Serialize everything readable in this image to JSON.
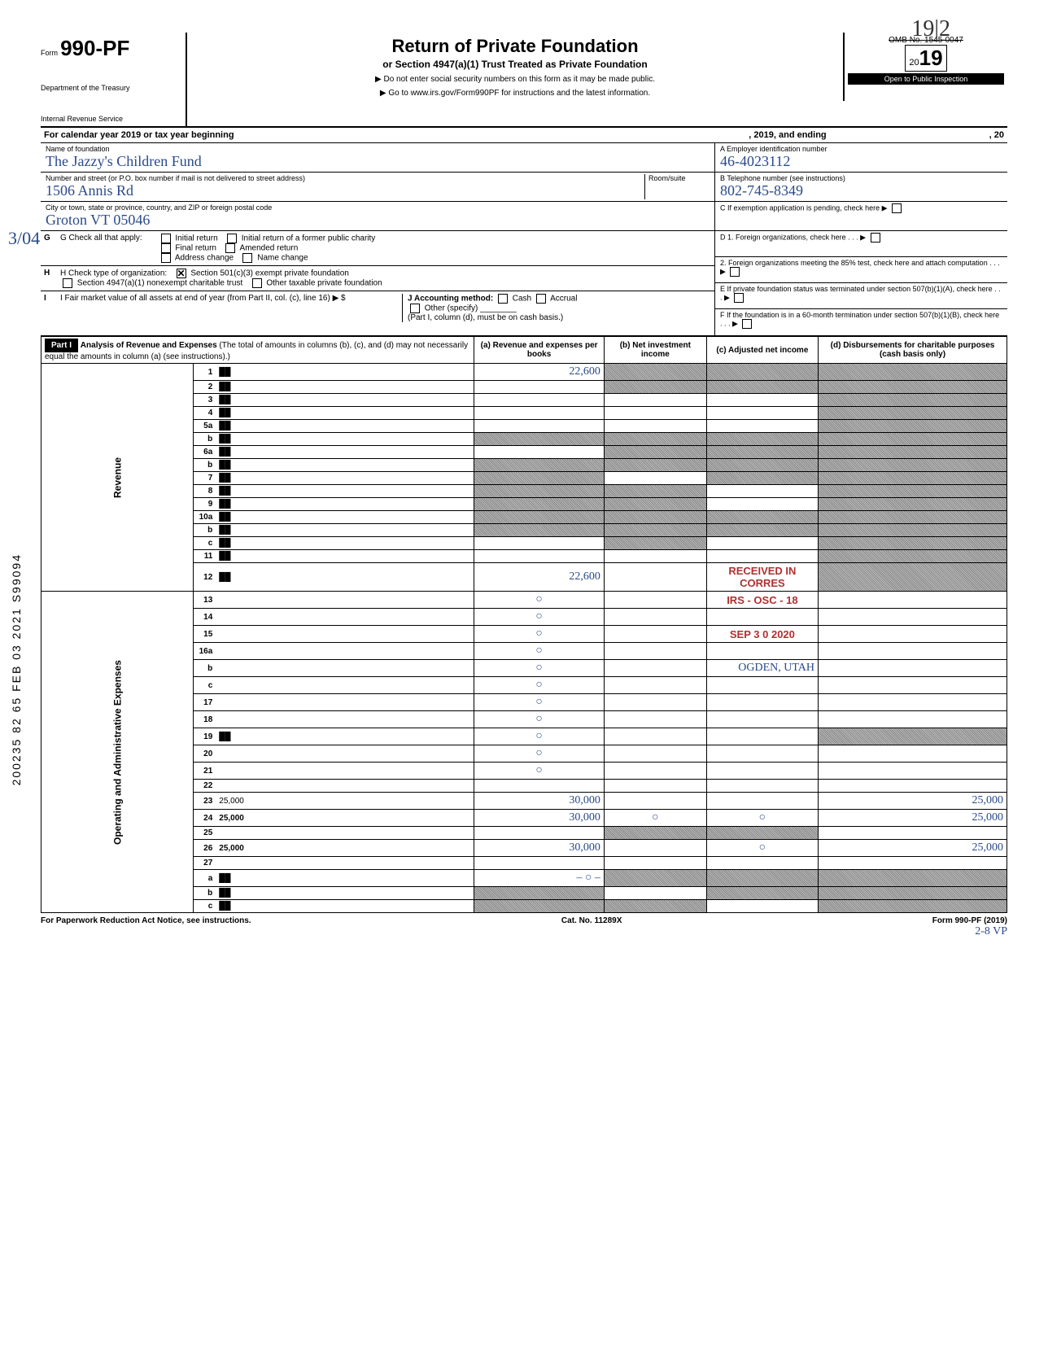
{
  "top_handwritten": "19|2",
  "form": {
    "form_label": "Form",
    "form_number": "990-PF",
    "dept_line1": "Department of the Treasury",
    "dept_line2": "Internal Revenue Service",
    "title_main": "Return of Private Foundation",
    "title_sub": "or Section 4947(a)(1) Trust Treated as Private Foundation",
    "title_note1": "▶ Do not enter social security numbers on this form as it may be made public.",
    "title_note2": "▶ Go to www.irs.gov/Form990PF for instructions and the latest information.",
    "omb": "OMB No. 1545-0047",
    "year_prefix": "20",
    "year": "19",
    "public_insp": "Open to Public Inspection"
  },
  "calendar_row": {
    "text_a": "For calendar year 2019 or tax year beginning",
    "text_b": ", 2019, and ending",
    "text_c": ", 20"
  },
  "identity": {
    "name_label": "Name of foundation",
    "name_value": "The Jazzy's Children Fund",
    "addr_label": "Number and street (or P.O. box number if mail is not delivered to street address)",
    "addr_value": "1506 Annis Rd",
    "room_label": "Room/suite",
    "city_label": "City or town, state or province, country, and ZIP or foreign postal code",
    "city_value": "Groton    VT    05046",
    "ein_label": "A  Employer identification number",
    "ein_value": "46-4023112",
    "phone_label": "B  Telephone number (see instructions)",
    "phone_value": "802-745-8349",
    "c_label": "C  If exemption application is pending, check here ▶",
    "d1_label": "D  1. Foreign organizations, check here . . . ▶",
    "d2_label": "2. Foreign organizations meeting the 85% test, check here and attach computation  . . . ▶",
    "e_label": "E  If private foundation status was terminated under section 507(b)(1)(A), check here  . . . ▶",
    "f_label": "F  If the foundation is in a 60-month termination under section 507(b)(1)(B), check here  . . . ▶"
  },
  "checks": {
    "g_label": "G  Check all that apply:",
    "g_items": [
      "Initial return",
      "Initial return of a former public charity",
      "Final return",
      "Amended return",
      "Address change",
      "Name change"
    ],
    "h_label": "H  Check type of organization:",
    "h_501c3": "Section 501(c)(3) exempt private foundation",
    "h_4947": "Section 4947(a)(1) nonexempt charitable trust",
    "h_other": "Other taxable private foundation",
    "i_label1": "I   Fair market value of all assets at end of year  (from Part II, col. (c), line 16) ▶  $",
    "j_label": "J  Accounting method:",
    "j_cash": "Cash",
    "j_accrual": "Accrual",
    "j_other": "Other (specify)",
    "j_note": "(Part I, column (d), must be on cash basis.)"
  },
  "part1": {
    "header": "Part I",
    "title": "Analysis of Revenue and Expenses",
    "title_note": "(The total of amounts in columns (b), (c), and (d) may not necessarily equal the amounts in column (a) (see instructions).)",
    "col_a": "(a) Revenue and expenses per books",
    "col_b": "(b) Net investment income",
    "col_c": "(c) Adjusted net income",
    "col_d": "(d) Disbursements for charitable purposes (cash basis only)"
  },
  "rows": [
    {
      "n": "1",
      "d": "██",
      "a": "22,600",
      "b": "██",
      "c": "██"
    },
    {
      "n": "2",
      "d": "██",
      "a": "",
      "b": "██",
      "c": "██"
    },
    {
      "n": "3",
      "d": "██",
      "a": "",
      "b": "",
      "c": ""
    },
    {
      "n": "4",
      "d": "██",
      "a": "",
      "b": "",
      "c": ""
    },
    {
      "n": "5a",
      "d": "██",
      "a": "",
      "b": "",
      "c": ""
    },
    {
      "n": "b",
      "d": "██",
      "a": "██",
      "b": "██",
      "c": "██"
    },
    {
      "n": "6a",
      "d": "██",
      "a": "",
      "b": "██",
      "c": "██"
    },
    {
      "n": "b",
      "d": "██",
      "a": "██",
      "b": "██",
      "c": "██"
    },
    {
      "n": "7",
      "d": "██",
      "a": "██",
      "b": "",
      "c": "██"
    },
    {
      "n": "8",
      "d": "██",
      "a": "██",
      "b": "██",
      "c": ""
    },
    {
      "n": "9",
      "d": "██",
      "a": "██",
      "b": "██",
      "c": ""
    },
    {
      "n": "10a",
      "d": "██",
      "a": "██",
      "b": "██",
      "c": "██"
    },
    {
      "n": "b",
      "d": "██",
      "a": "██",
      "b": "██",
      "c": "██"
    },
    {
      "n": "c",
      "d": "██",
      "a": "",
      "b": "██",
      "c": ""
    },
    {
      "n": "11",
      "d": "██",
      "a": "",
      "b": "",
      "c": ""
    },
    {
      "n": "12",
      "d": "██",
      "a": "22,600",
      "b": "",
      "c": "RECEIVED IN CORRES",
      "bold": true
    },
    {
      "n": "13",
      "d": "",
      "a": "○",
      "b": "",
      "c": "IRS - OSC - 18"
    },
    {
      "n": "14",
      "d": "",
      "a": "○",
      "b": "",
      "c": ""
    },
    {
      "n": "15",
      "d": "",
      "a": "○",
      "b": "",
      "c": "SEP 3 0 2020"
    },
    {
      "n": "16a",
      "d": "",
      "a": "○",
      "b": "",
      "c": ""
    },
    {
      "n": "b",
      "d": "",
      "a": "○",
      "b": "",
      "c": "OGDEN, UTAH"
    },
    {
      "n": "c",
      "d": "",
      "a": "○",
      "b": "",
      "c": ""
    },
    {
      "n": "17",
      "d": "",
      "a": "○",
      "b": "",
      "c": ""
    },
    {
      "n": "18",
      "d": "",
      "a": "○",
      "b": "",
      "c": ""
    },
    {
      "n": "19",
      "d": "██",
      "a": "○",
      "b": "",
      "c": ""
    },
    {
      "n": "20",
      "d": "",
      "a": "○",
      "b": "",
      "c": ""
    },
    {
      "n": "21",
      "d": "",
      "a": "○",
      "b": "",
      "c": ""
    },
    {
      "n": "22",
      "d": "",
      "a": "",
      "b": "",
      "c": ""
    },
    {
      "n": "23",
      "d": "25,000",
      "a": "30,000",
      "b": "",
      "c": ""
    },
    {
      "n": "24",
      "d": "25,000",
      "a": "30,000",
      "b": "○",
      "c": "○",
      "bold": true
    },
    {
      "n": "25",
      "d": "",
      "a": "",
      "b": "██",
      "c": "██"
    },
    {
      "n": "26",
      "d": "25,000",
      "a": "30,000",
      "b": "",
      "c": "○",
      "bold": true
    },
    {
      "n": "27",
      "d": "",
      "a": "",
      "b": "",
      "c": ""
    },
    {
      "n": "a",
      "d": "██",
      "a": "– ○ –",
      "b": "██",
      "c": "██",
      "bold": true
    },
    {
      "n": "b",
      "d": "██",
      "a": "██",
      "b": "",
      "c": "██",
      "bold": true
    },
    {
      "n": "c",
      "d": "██",
      "a": "██",
      "b": "██",
      "c": "",
      "bold": true
    }
  ],
  "side_labels": {
    "revenue": "Revenue",
    "expenses": "Operating and Administrative Expenses"
  },
  "side_vertical": "200235 82 65 FEB 03 2021  S99094",
  "margin_hand": "3/04",
  "footer": {
    "left": "For Paperwork Reduction Act Notice, see instructions.",
    "mid": "Cat. No. 11289X",
    "right": "Form 990-PF (2019)"
  },
  "bottom_hand": "2-8 VP"
}
